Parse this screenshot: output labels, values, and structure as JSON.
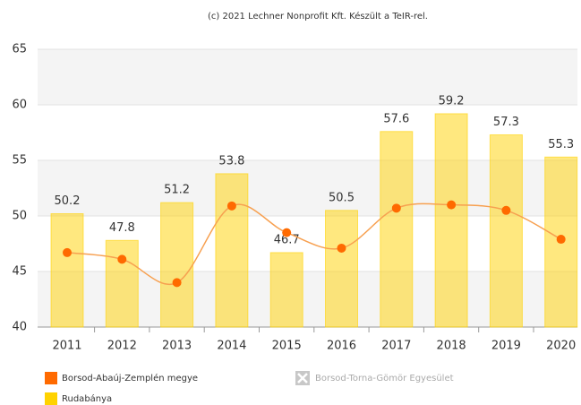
{
  "chart_data": {
    "type": "bar-line",
    "credit": "(c) 2021 Lechner Nonprofit Kft. Készült a TeIR-rel.",
    "categories": [
      "2011",
      "2012",
      "2013",
      "2014",
      "2015",
      "2016",
      "2017",
      "2018",
      "2019",
      "2020"
    ],
    "series": [
      {
        "name": "Borsod-Abaúj-Zemplén megye",
        "type": "line",
        "color": "#ff6a00",
        "line_color": "#f7a050",
        "values": [
          46.7,
          46.1,
          44.0,
          50.9,
          48.5,
          47.1,
          50.7,
          51.0,
          50.5,
          47.9
        ]
      },
      {
        "name": "Rudabánya",
        "type": "bar",
        "color": "#ffd200",
        "values": [
          50.2,
          47.8,
          51.2,
          53.8,
          46.7,
          50.5,
          57.6,
          59.2,
          57.3,
          55.3
        ]
      }
    ],
    "hidden_series": [
      {
        "name": "Borsod-Torna-Gömör Egyesület",
        "color": "#c8c8c8"
      }
    ],
    "ylim": [
      40,
      65
    ],
    "yticks": [
      40,
      45,
      50,
      55,
      60,
      65
    ],
    "grid": true
  }
}
